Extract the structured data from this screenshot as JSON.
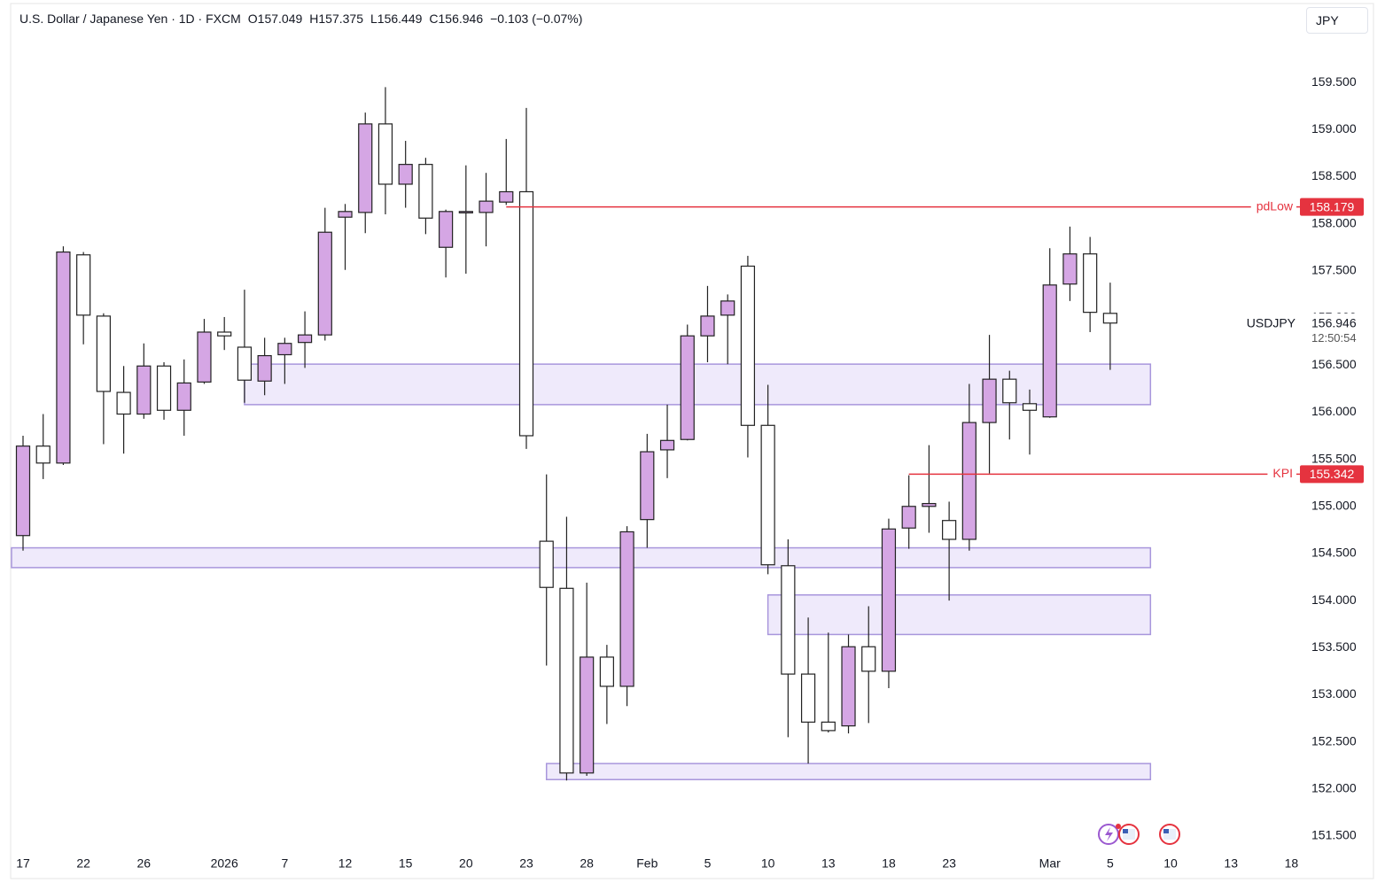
{
  "chart_data": {
    "type": "candlestick",
    "title": "U.S. Dollar / Japanese Yen · 1D · FXCM",
    "ohlc_texts": [
      "O157.049",
      "H157.375",
      "L156.449",
      "C156.946",
      "−0.103 (−0.07%)"
    ],
    "currency": "JPY",
    "categories": [
      "17",
      null,
      null,
      "22",
      null,
      null,
      "26",
      null,
      null,
      null,
      "2026",
      null,
      null,
      "7",
      null,
      null,
      "12",
      null,
      null,
      "15",
      null,
      null,
      "20",
      null,
      null,
      "23",
      null,
      null,
      "28",
      null,
      null,
      "Feb",
      null,
      null,
      "5",
      null,
      null,
      "10",
      null,
      null,
      "13",
      null,
      null,
      "18",
      null,
      null,
      "23",
      null,
      null,
      null,
      null,
      "Mar",
      null,
      null,
      "5",
      null,
      null,
      "10",
      null,
      null,
      "13",
      null,
      null,
      "18"
    ],
    "open": [
      154.69,
      155.64,
      155.46,
      157.67,
      157.02,
      156.21,
      155.98,
      156.49,
      156.02,
      156.32,
      156.85,
      156.69,
      156.33,
      156.61,
      156.74,
      156.82,
      158.07,
      158.12,
      159.06,
      158.42,
      158.63,
      157.75,
      158.12,
      158.12,
      158.23,
      158.34,
      154.63,
      154.13,
      152.17,
      153.4,
      153.09,
      154.86,
      155.6,
      155.71,
      156.81,
      157.03,
      157.55,
      155.86,
      154.37,
      153.22,
      152.71,
      152.67,
      153.51,
      153.25,
      154.77,
      155.0,
      154.85,
      154.65,
      155.89,
      156.35,
      156.09,
      155.95,
      157.36,
      157.68,
      157.049,
      null,
      null,
      null,
      null,
      null,
      null,
      null,
      null,
      null
    ],
    "high": [
      155.75,
      155.98,
      157.76,
      157.7,
      157.05,
      156.49,
      156.73,
      156.53,
      156.56,
      156.99,
      157.01,
      157.3,
      156.79,
      156.79,
      157.07,
      158.17,
      158.21,
      159.18,
      159.45,
      158.88,
      158.7,
      158.15,
      158.62,
      158.54,
      158.9,
      159.23,
      155.34,
      154.89,
      154.19,
      153.53,
      154.79,
      155.77,
      156.08,
      156.93,
      157.34,
      157.25,
      157.66,
      156.29,
      154.65,
      153.82,
      153.66,
      153.64,
      153.94,
      154.87,
      155.33,
      155.65,
      155.05,
      156.3,
      156.82,
      156.44,
      156.24,
      157.74,
      157.97,
      157.86,
      157.375,
      null,
      null,
      null,
      null,
      null,
      null,
      null,
      null,
      null
    ],
    "low": [
      154.53,
      155.29,
      155.44,
      156.72,
      155.66,
      155.56,
      155.93,
      155.92,
      155.75,
      156.3,
      156.66,
      156.1,
      156.18,
      156.3,
      156.47,
      156.76,
      157.51,
      157.9,
      158.1,
      158.17,
      157.89,
      157.43,
      157.47,
      157.76,
      158.2,
      155.61,
      153.31,
      152.09,
      152.14,
      152.69,
      152.88,
      154.56,
      155.3,
      155.7,
      156.53,
      156.51,
      155.52,
      154.28,
      152.55,
      152.27,
      152.6,
      152.59,
      152.7,
      153.07,
      154.55,
      154.72,
      154.0,
      154.53,
      155.35,
      155.71,
      155.55,
      155.94,
      157.18,
      156.85,
      156.449,
      null,
      null,
      null,
      null,
      null,
      null,
      null,
      null,
      null
    ],
    "close": [
      155.64,
      155.46,
      157.7,
      157.03,
      156.22,
      155.98,
      156.49,
      156.02,
      156.31,
      156.85,
      156.81,
      156.34,
      156.6,
      156.73,
      156.82,
      157.91,
      158.13,
      159.06,
      158.42,
      158.63,
      158.06,
      158.13,
      158.13,
      158.24,
      158.34,
      155.75,
      154.14,
      152.17,
      153.4,
      153.09,
      154.73,
      155.58,
      155.7,
      156.81,
      157.02,
      157.18,
      155.86,
      154.38,
      153.22,
      152.71,
      152.62,
      153.51,
      153.25,
      154.76,
      155.0,
      155.03,
      154.65,
      155.89,
      156.35,
      156.1,
      156.02,
      157.35,
      157.68,
      157.06,
      156.946,
      null,
      null,
      null,
      null,
      null,
      null,
      null,
      null,
      null
    ],
    "up_color": "#d5a6e4",
    "down_color": "#ffffff",
    "ylim": [
      151.35,
      160.3
    ],
    "yticks": [
      {
        "value": 151.5,
        "label": "151.500"
      },
      {
        "value": 152,
        "label": "152.000"
      },
      {
        "value": 152.5,
        "label": "152.500"
      },
      {
        "value": 153,
        "label": "153.000"
      },
      {
        "value": 153.5,
        "label": "153.500"
      },
      {
        "value": 154,
        "label": "154.000"
      },
      {
        "value": 154.5,
        "label": "154.500"
      },
      {
        "value": 155,
        "label": "155.000"
      },
      {
        "value": 155.5,
        "label": "155.500"
      },
      {
        "value": 156,
        "label": "156.000"
      },
      {
        "value": 156.5,
        "label": "156.500"
      },
      {
        "value": 157,
        "label": "157.000"
      },
      {
        "value": 157.5,
        "label": "157.500"
      },
      {
        "value": 158,
        "label": "158.000"
      },
      {
        "value": 158.5,
        "label": "158.500"
      },
      {
        "value": 159,
        "label": "159.000"
      },
      {
        "value": 159.5,
        "label": "159.500"
      }
    ],
    "levels": [
      {
        "name": "pdLow",
        "value": 158.179,
        "label": "158.179",
        "color": "#e5333f"
      },
      {
        "name": "KPI",
        "value": 155.342,
        "label": "155.342",
        "color": "#e5333f"
      }
    ],
    "zones": [
      {
        "top": 156.51,
        "bottom": 156.08
      },
      {
        "top": 154.56,
        "bottom": 154.35
      },
      {
        "top": 154.06,
        "bottom": 153.64
      },
      {
        "top": 152.27,
        "bottom": 152.1
      }
    ],
    "last_price": {
      "symbol": "USDJPY",
      "value": 156.946,
      "label": "156.946",
      "countdown": "12:50:54"
    }
  }
}
